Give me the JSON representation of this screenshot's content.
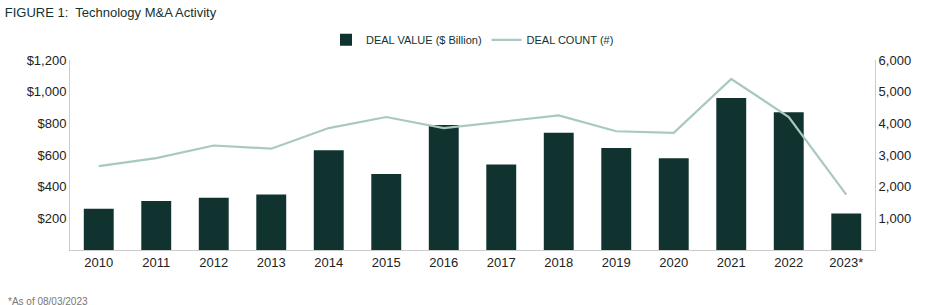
{
  "chart_data": {
    "type": "bar",
    "title": "FIGURE 1:  Technology M&A Activity",
    "categories": [
      "2010",
      "2011",
      "2012",
      "2013",
      "2014",
      "2015",
      "2016",
      "2017",
      "2018",
      "2019",
      "2020",
      "2021",
      "2022",
      "2023*"
    ],
    "series": [
      {
        "name": "DEAL VALUE ($ Billion)",
        "type": "bar",
        "color": "#11332f",
        "values": [
          260,
          310,
          330,
          350,
          630,
          480,
          790,
          540,
          740,
          645,
          580,
          960,
          870,
          230
        ]
      },
      {
        "name": "DEAL COUNT (#)",
        "type": "line",
        "color": "#a8c8c1",
        "axis": "y2",
        "values": [
          2650,
          2900,
          3300,
          3200,
          3850,
          4200,
          3850,
          4050,
          4250,
          3750,
          3700,
          5400,
          4200,
          1750
        ]
      }
    ],
    "ylim": [
      0,
      1200
    ],
    "yticks": [
      {
        "value": 200,
        "label": "$200"
      },
      {
        "value": 400,
        "label": "$400"
      },
      {
        "value": 600,
        "label": "$600"
      },
      {
        "value": 800,
        "label": "$800"
      },
      {
        "value": 1000,
        "label": "$1,000"
      },
      {
        "value": 1200,
        "label": "$1,200"
      }
    ],
    "y2lim": [
      0,
      6000
    ],
    "y2ticks": [
      {
        "value": 1000,
        "label": "1,000"
      },
      {
        "value": 2000,
        "label": "2,000"
      },
      {
        "value": 3000,
        "label": "3,000"
      },
      {
        "value": 4000,
        "label": "4,000"
      },
      {
        "value": 5000,
        "label": "5,000"
      },
      {
        "value": 6000,
        "label": "6,000"
      }
    ],
    "grid": false,
    "legend": "top",
    "annotations": [
      "*As of 08/03/2023"
    ]
  }
}
